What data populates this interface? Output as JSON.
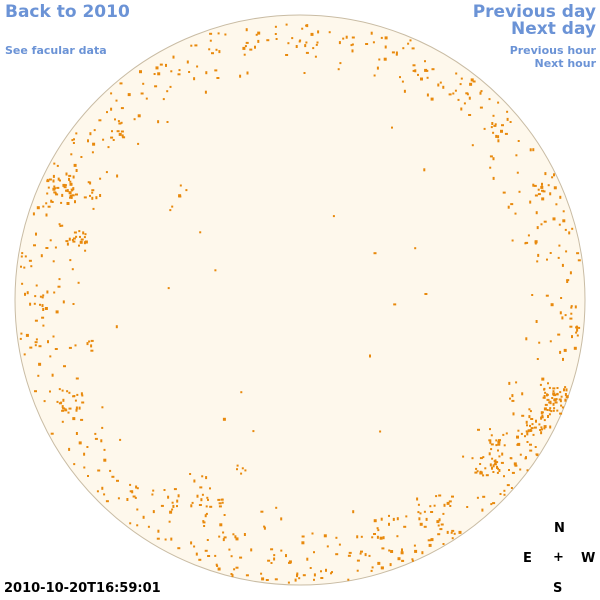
{
  "nav": {
    "back_label": "Back to 2010",
    "facular_label": "See facular data",
    "prev_day_label": "Previous day",
    "next_day_label": "Next day",
    "prev_hour_label": "Previous hour",
    "next_hour_label": "Next hour"
  },
  "timestamp": "2010-10-20T16:59:01",
  "compass": {
    "north": "N",
    "south": "S",
    "east": "E",
    "west": "W",
    "center": "+"
  },
  "colors": {
    "link": "#6b93d6",
    "disk_fill": "#fef8ec",
    "disk_edge": "#c9bca4",
    "facula": "#e8890c"
  }
}
